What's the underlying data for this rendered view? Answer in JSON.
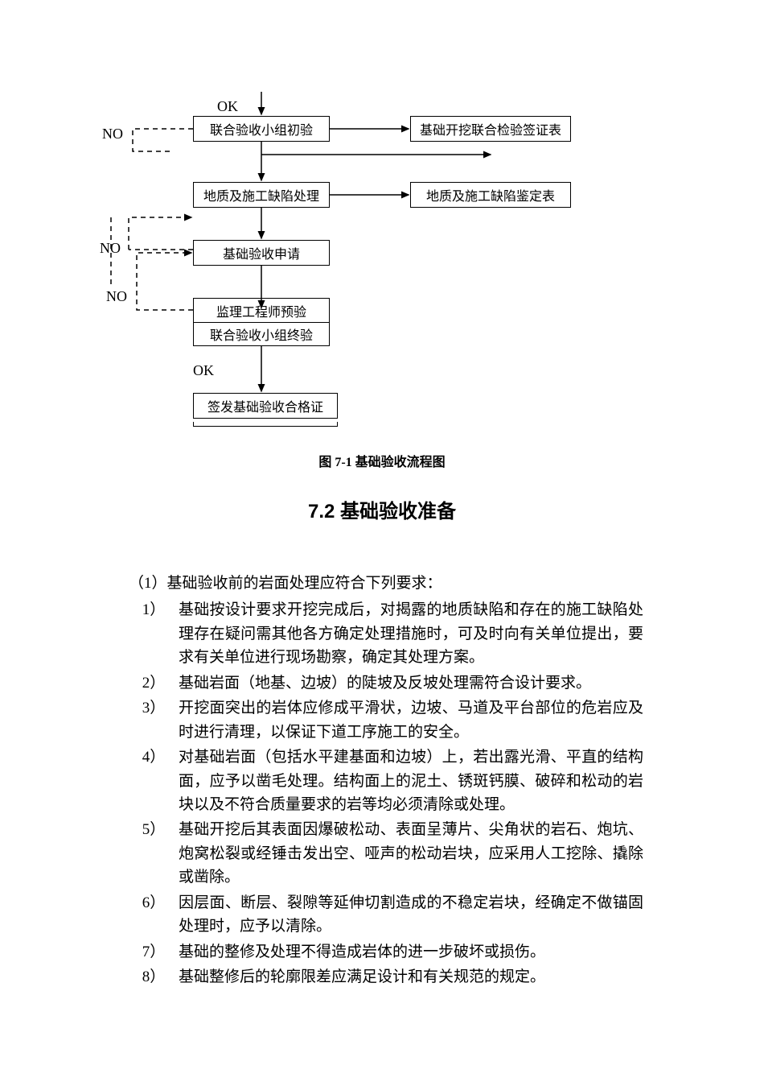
{
  "flowchart": {
    "caption": "图 7-1   基础验收流程图",
    "nodes": {
      "inspect_init": "联合验收小组初验",
      "form1": "基础开挖联合检验签证表",
      "defect_process": "地质及施工缺陷处理",
      "form2": "地质及施工缺陷鉴定表",
      "apply": "基础验收申请",
      "pre_inspect": "监理工程师预验",
      "final_inspect": "联合验收小组终验",
      "issue_cert": "签发基础验收合格证"
    },
    "labels": {
      "ok_top": "OK",
      "no1": "NO",
      "no2": "NO",
      "no3": "NO",
      "ok_bottom": "OK"
    },
    "colors": {
      "line": "#000000",
      "text": "#000000",
      "bg": "#ffffff"
    }
  },
  "section": {
    "title": "7.2   基础验收准备",
    "intro_prefix": "（1）",
    "intro": "基础验收前的岩面处理应符合下列要求：",
    "items": [
      {
        "num": "1）",
        "text": "基础按设计要求开挖完成后，对揭露的地质缺陷和存在的施工缺陷处理存在疑问需其他各方确定处理措施时，可及时向有关单位提出，要求有关单位进行现场勘察，确定其处理方案。"
      },
      {
        "num": "2）",
        "text": "基础岩面（地基、边坡）的陡坡及反坡处理需符合设计要求。"
      },
      {
        "num": "3）",
        "text": "开挖面突出的岩体应修成平滑状，边坡、马道及平台部位的危岩应及时进行清理，以保证下道工序施工的安全。"
      },
      {
        "num": "4）",
        "text": "对基础岩面（包括水平建基面和边坡）上，若出露光滑、平直的结构面，应予以凿毛处理。结构面上的泥土、锈斑钙膜、破碎和松动的岩块以及不符合质量要求的岩等均必须清除或处理。"
      },
      {
        "num": "5）",
        "text": "基础开挖后其表面因爆破松动、表面呈薄片、尖角状的岩石、炮坑、炮窝松裂或经锤击发出空、哑声的松动岩块，应采用人工挖除、撬除或凿除。"
      },
      {
        "num": "6）",
        "text": "因层面、断层、裂隙等延伸切割造成的不稳定岩块，经确定不做锚固处理时，应予以清除。"
      },
      {
        "num": "7）",
        "text": "基础的整修及处理不得造成岩体的进一步破坏或损伤。"
      },
      {
        "num": "8）",
        "text": "基础整修后的轮廓限差应满足设计和有关规范的规定。"
      }
    ]
  }
}
